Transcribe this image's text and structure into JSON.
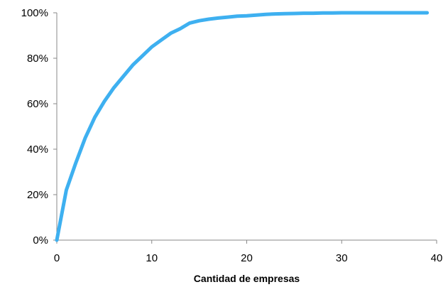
{
  "chart_data": {
    "type": "line",
    "xlabel": "Cantidad  de empresas",
    "ylabel": "",
    "xlim": [
      0,
      40
    ],
    "ylim": [
      0,
      100
    ],
    "x_ticks": [
      0,
      10,
      20,
      30,
      40
    ],
    "y_ticks": [
      0,
      20,
      40,
      60,
      80,
      100
    ],
    "x_tick_labels": [
      "0",
      "10",
      "20",
      "30",
      "40"
    ],
    "y_tick_labels": [
      "0%",
      "20%",
      "40%",
      "60%",
      "80%",
      "100%"
    ],
    "grid": false,
    "legend": "none",
    "series": [
      {
        "color": "#3EB0F0",
        "x": [
          0,
          1,
          2,
          3,
          4,
          5,
          6,
          7,
          8,
          9,
          10,
          11,
          12,
          13,
          14,
          15,
          16,
          17,
          18,
          19,
          20,
          21,
          22,
          23,
          24,
          25,
          26,
          27,
          28,
          29,
          30,
          31,
          32,
          33,
          34,
          35,
          36,
          37,
          38,
          39
        ],
        "y": [
          0,
          22,
          34,
          45,
          54,
          61,
          67,
          72,
          77,
          81,
          85,
          88,
          91,
          93,
          95.5,
          96.5,
          97.2,
          97.7,
          98.1,
          98.5,
          98.7,
          99,
          99.3,
          99.5,
          99.6,
          99.7,
          99.8,
          99.8,
          99.9,
          99.9,
          100,
          100,
          100,
          100,
          100,
          100,
          100,
          100,
          100,
          100
        ]
      }
    ]
  }
}
